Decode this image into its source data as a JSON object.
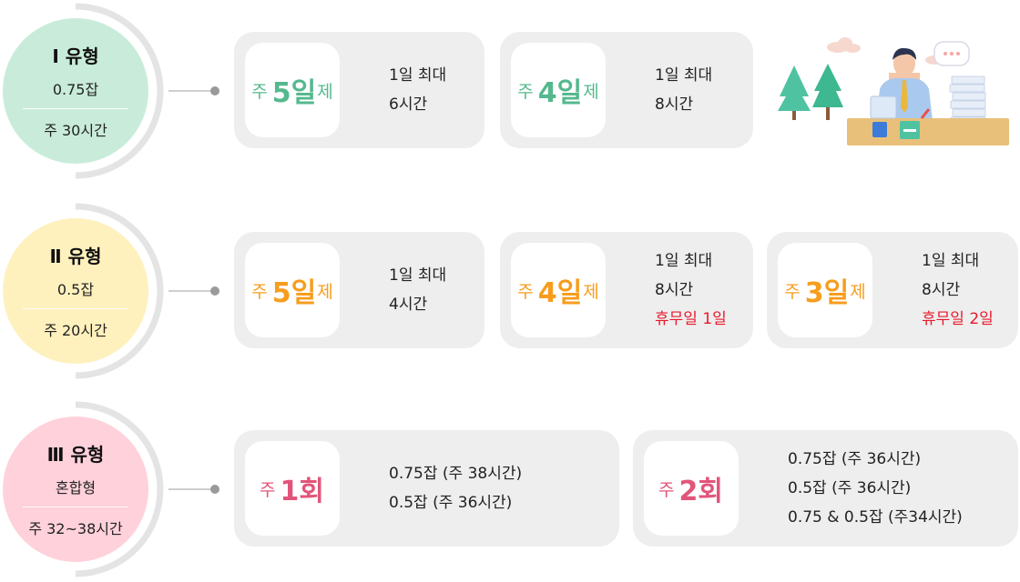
{
  "colors": {
    "type1_circle": "#c9ecda",
    "type1_accent": "#55b88e",
    "type2_circle": "#fff1be",
    "type2_accent": "#f79d1e",
    "type3_circle": "#ffd1db",
    "type3_accent": "#e2557a",
    "card_bg": "#eeeeee",
    "holiday_red": "#e8192c"
  },
  "rows": [
    {
      "title": "Ⅰ 유형",
      "sub1": "0.75잡",
      "sub2": "주 30시간",
      "cards": [
        {
          "pre": "주",
          "num": "5일",
          "post": "제",
          "lines": [
            "1일 최대",
            "6시간"
          ]
        },
        {
          "pre": "주",
          "num": "4일",
          "post": "제",
          "lines": [
            "1일 최대",
            "8시간"
          ]
        }
      ],
      "illustration": "office-worker-at-desk"
    },
    {
      "title": "Ⅱ 유형",
      "sub1": "0.5잡",
      "sub2": "주 20시간",
      "cards": [
        {
          "pre": "주",
          "num": "5일",
          "post": "제",
          "lines": [
            "1일 최대",
            "4시간"
          ]
        },
        {
          "pre": "주",
          "num": "4일",
          "post": "제",
          "lines": [
            "1일 최대",
            "8시간"
          ],
          "holiday": "휴무일 1일"
        },
        {
          "pre": "주",
          "num": "3일",
          "post": "제",
          "lines": [
            "1일 최대",
            "8시간"
          ],
          "holiday": "휴무일 2일"
        }
      ]
    },
    {
      "title": "Ⅲ 유형",
      "sub1": "혼합형",
      "sub2": "주 32~38시간",
      "cards": [
        {
          "pre": "주",
          "num": "1회",
          "lines": [
            "0.75잡 (주 38시간)",
            "0.5잡 (주 36시간)"
          ]
        },
        {
          "pre": "주",
          "num": "2회",
          "lines": [
            "0.75잡 (주 36시간)",
            "0.5잡 (주 36시간)",
            "0.75 & 0.5잡 (주34시간)"
          ]
        }
      ]
    }
  ]
}
